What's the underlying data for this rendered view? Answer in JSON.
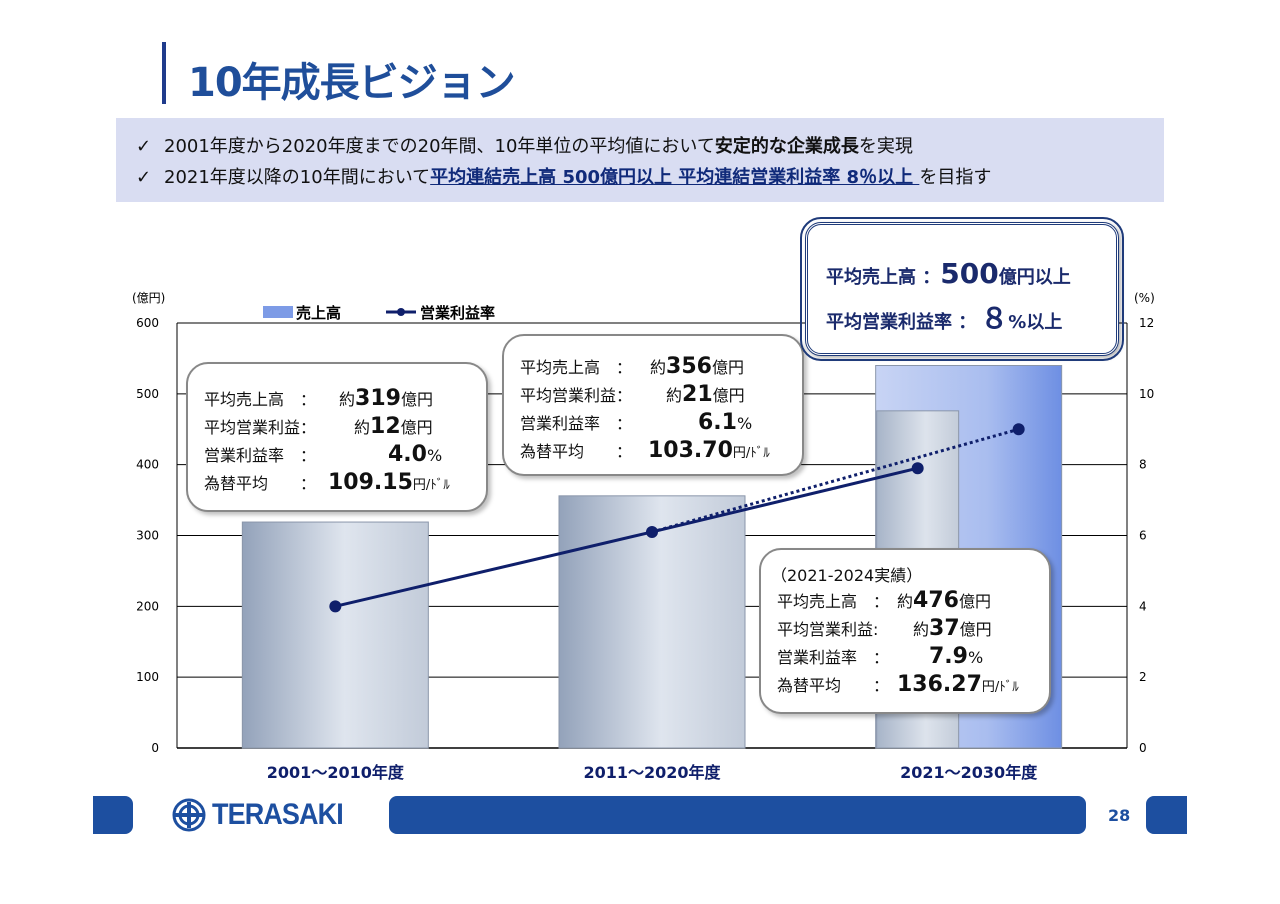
{
  "page": {
    "title": "10年成長ビジョン",
    "page_number": "28",
    "logo_text": "TERASAKI"
  },
  "summary": {
    "check": "✓",
    "line1_a": "2001年度から2020年度までの20年間、10年単位の平均値において",
    "line1_b": "安定的な企業成長",
    "line1_c": "を実現",
    "line2_a": "2021年度以降の10年間において",
    "line2_b": "平均連結売上高 500億円以上  平均連結営業利益率 8％以上 ",
    "line2_c": "を目指す"
  },
  "chart_data": {
    "type": "bar",
    "categories": [
      "2001〜2010年度",
      "2011〜2020年度",
      "2021〜2030年度"
    ],
    "series": [
      {
        "name": "売上高",
        "type": "bar",
        "axis": "left",
        "values": [
          319,
          356,
          540
        ]
      },
      {
        "name": "営業利益率",
        "type": "line",
        "axis": "right",
        "values": [
          4.0,
          6.1,
          7.9
        ]
      }
    ],
    "actual_bar": {
      "category": "2021〜2030年度",
      "value": 476
    },
    "target_line": {
      "values": [
        6.1,
        9.0
      ]
    },
    "left_axis": {
      "label": "(億円)",
      "ylim": [
        0,
        600
      ],
      "ticks": [
        0,
        100,
        200,
        300,
        400,
        500,
        600
      ]
    },
    "right_axis": {
      "label": "(%)",
      "ylim": [
        0,
        12
      ],
      "ticks": [
        0,
        2,
        4,
        6,
        8,
        10,
        12
      ]
    },
    "legend_position": "top-left",
    "grid": true
  },
  "callouts": {
    "c1": {
      "r1_label": "平均売上高　：",
      "r1_pre": "約",
      "r1_val": "319",
      "r1_unit": "億円",
      "r2_label": "平均営業利益：",
      "r2_pre": "約",
      "r2_val": "12",
      "r2_unit": "億円",
      "r3_label": "営業利益率　：",
      "r3_val": "4.0",
      "r3_unit": "%",
      "r4_label": "為替平均　　：",
      "r4_val": "109.15",
      "r4_unit": "円/ﾄﾞﾙ"
    },
    "c2": {
      "r1_label": "平均売上高　：",
      "r1_pre": "約",
      "r1_val": "356",
      "r1_unit": "億円",
      "r2_label": "平均営業利益：",
      "r2_pre": "約",
      "r2_val": "21",
      "r2_unit": "億円",
      "r3_label": "営業利益率　：",
      "r3_val": "6.1",
      "r3_unit": "%",
      "r4_label": "為替平均　　：",
      "r4_val": "103.70",
      "r4_unit": "円/ﾄﾞﾙ"
    },
    "c3": {
      "head": "（2021-2024実績）",
      "r1_label": "平均売上高　：",
      "r1_pre": "約",
      "r1_val": "476",
      "r1_unit": "億円",
      "r2_label": "平均営業利益:",
      "r2_pre": "約",
      "r2_val": "37",
      "r2_unit": "億円",
      "r3_label": "営業利益率　：",
      "r3_val": "7.9",
      "r3_unit": "%",
      "r4_label": "為替平均　　：",
      "r4_val": "136.27",
      "r4_unit": "円/ﾄﾞﾙ"
    }
  },
  "target": {
    "r1_label": "平均売上高 ：",
    "r1_val": "500",
    "r1_unit": "億円以上",
    "r2_label": "平均営業利益率 ：",
    "r2_val": "８",
    "r2_unit": "%以上"
  },
  "colors": {
    "accent": "#1d4fa0",
    "title": "#1f4e9a",
    "line": "#0f1f6b",
    "bar_gray": "#a8b4c8",
    "bar_blue": "#7d9be6"
  }
}
